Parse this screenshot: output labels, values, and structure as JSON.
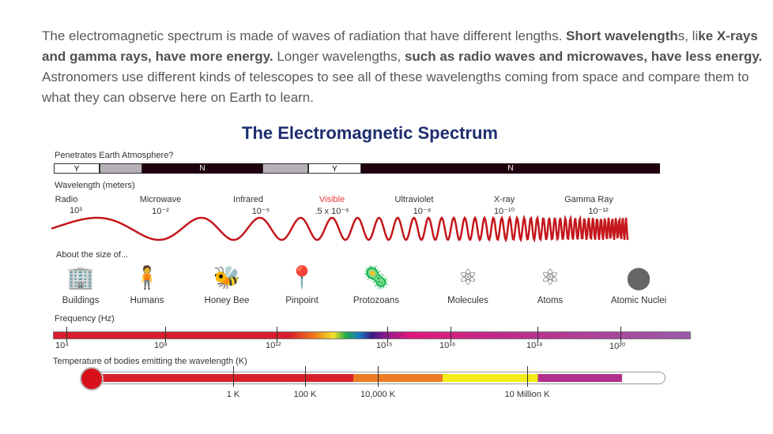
{
  "intro": {
    "p1": "The electromagnetic spectrum is made of waves of radiation that have different lengths. ",
    "b1": "Short wavelength",
    "p2": "s, li",
    "b2": "ke X-rays and gamma rays, have more energy.",
    "p3": " Longer wavelengths, ",
    "b3": "such as radio waves and microwaves, have less energy.",
    "p4": " Astronomers use different kinds of telescopes to see all of these wavelengths coming from space and compare them to what they can observe here on Earth to learn."
  },
  "diagram": {
    "title": "The Electromagnetic Spectrum",
    "penetrates_label": "Penetrates Earth Atmosphere?",
    "penetrates": [
      {
        "label": "Y"
      },
      {
        "label": ""
      },
      {
        "label": "N"
      },
      {
        "label": ""
      },
      {
        "label": "Y"
      },
      {
        "label": "N"
      }
    ],
    "wavelength_label": "Wavelength (meters)",
    "bands": [
      {
        "name": "Radio",
        "wavelength": "10³"
      },
      {
        "name": "Microwave",
        "wavelength": "10⁻²"
      },
      {
        "name": "Infrared",
        "wavelength": "10⁻⁵"
      },
      {
        "name": "Visible",
        "wavelength": ".5 x 10⁻⁶"
      },
      {
        "name": "Ultraviolet",
        "wavelength": "10⁻⁸"
      },
      {
        "name": "X-ray",
        "wavelength": "10⁻¹⁰"
      },
      {
        "name": "Gamma Ray",
        "wavelength": "10⁻¹²"
      }
    ],
    "size_label": "About the size of...",
    "sizes": [
      "Buildings",
      "Humans",
      "Honey Bee",
      "Pinpoint",
      "Protozoans",
      "Molecules",
      "Atoms",
      "Atomic Nuclei"
    ],
    "frequency_label": "Frequency (Hz)",
    "frequencies": [
      "10⁴",
      "10⁸",
      "10¹²",
      "10¹⁵",
      "10¹⁶",
      "10¹⁸",
      "10²⁰"
    ],
    "temperature_label": "Temperature of bodies emitting the wavelength (K)",
    "temperatures": [
      "1 K",
      "100 K",
      "10,000 K",
      "10 Million K"
    ],
    "colors": {
      "title": "#1d2d6e",
      "wave": "#c4161c",
      "visible": "#e8383d",
      "opaque": "#1e0010"
    }
  }
}
